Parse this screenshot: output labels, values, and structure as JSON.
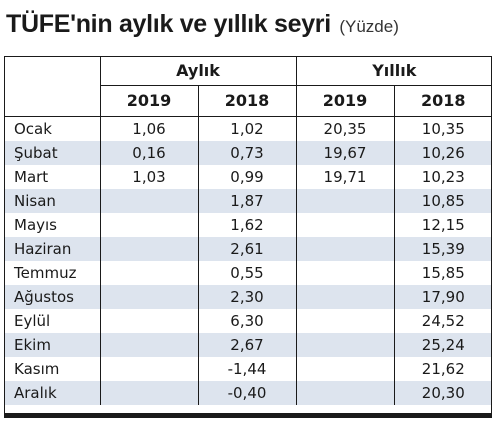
{
  "title": "TÜFE'nin aylık ve yıllık seyri",
  "subtitle": "(Yüzde)",
  "chart_data": {
    "type": "table",
    "groups": [
      "Aylık",
      "Yıllık"
    ],
    "years": [
      "2019",
      "2018",
      "2019",
      "2018"
    ],
    "rows": [
      {
        "month": "Ocak",
        "cells": [
          "1,06",
          "1,02",
          "20,35",
          "10,35"
        ]
      },
      {
        "month": "Şubat",
        "cells": [
          "0,16",
          "0,73",
          "19,67",
          "10,26"
        ]
      },
      {
        "month": "Mart",
        "cells": [
          "1,03",
          "0,99",
          "19,71",
          "10,23"
        ]
      },
      {
        "month": "Nisan",
        "cells": [
          "",
          "1,87",
          "",
          "10,85"
        ]
      },
      {
        "month": "Mayıs",
        "cells": [
          "",
          "1,62",
          "",
          "12,15"
        ]
      },
      {
        "month": "Haziran",
        "cells": [
          "",
          "2,61",
          "",
          "15,39"
        ]
      },
      {
        "month": "Temmuz",
        "cells": [
          "",
          "0,55",
          "",
          "15,85"
        ]
      },
      {
        "month": "Ağustos",
        "cells": [
          "",
          "2,30",
          "",
          "17,90"
        ]
      },
      {
        "month": "Eylül",
        "cells": [
          "",
          "6,30",
          "",
          "24,52"
        ]
      },
      {
        "month": "Ekim",
        "cells": [
          "",
          "2,67",
          "",
          "25,24"
        ]
      },
      {
        "month": "Kasım",
        "cells": [
          "",
          "-1,44",
          "",
          "21,62"
        ]
      },
      {
        "month": "Aralık",
        "cells": [
          "",
          "-0,40",
          "",
          "20,30"
        ]
      }
    ]
  },
  "colors": {
    "stripe": "#dde4ee",
    "rule": "#1a1a1a"
  }
}
